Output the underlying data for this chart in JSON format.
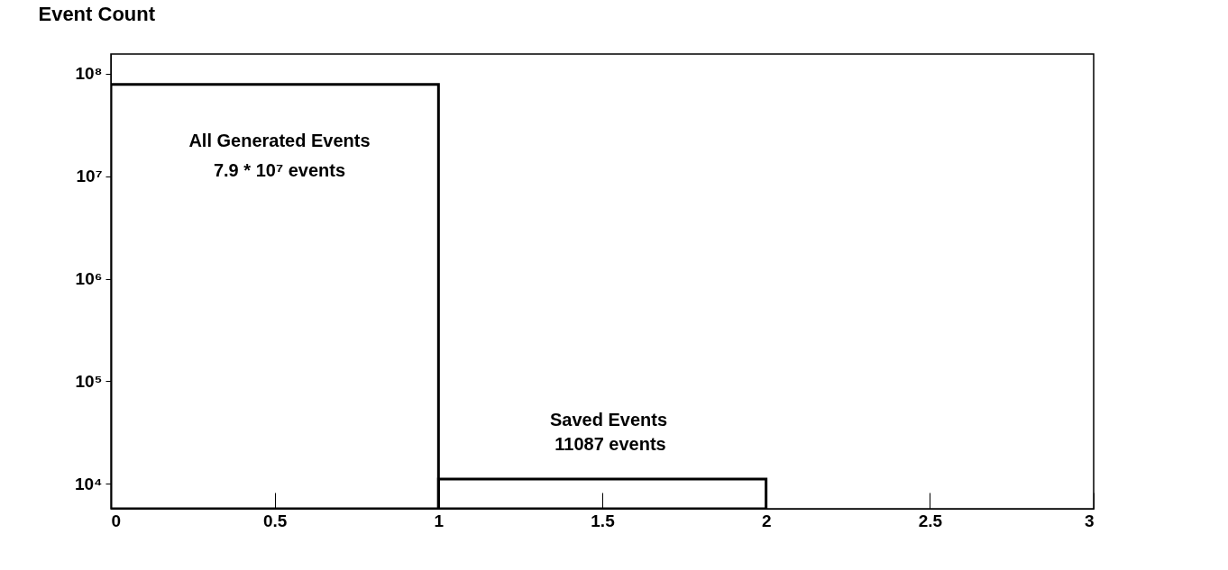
{
  "chart_data": {
    "type": "histogram",
    "title": "Event Count",
    "bins": [
      0,
      1,
      2,
      3
    ],
    "values": [
      79000000,
      11087,
      null
    ],
    "color": "#000000",
    "log": "y",
    "xlim": [
      0,
      3
    ],
    "xticks": [
      0,
      0.5,
      1,
      1.5,
      2,
      2.5,
      3
    ],
    "ylim": [
      5700,
      156000000
    ],
    "yticks": [
      {
        "value": 10000,
        "label": "10⁴"
      },
      {
        "value": 100000,
        "label": "10⁵"
      },
      {
        "value": 1000000,
        "label": "10⁶"
      },
      {
        "value": 10000000,
        "label": "10⁷"
      },
      {
        "value": 100000000,
        "label": "10⁸"
      }
    ],
    "grid": false,
    "annotations": [
      "All Generated Events",
      "7.9 * 10⁷ events",
      "Saved Events",
      "11087 events"
    ]
  }
}
